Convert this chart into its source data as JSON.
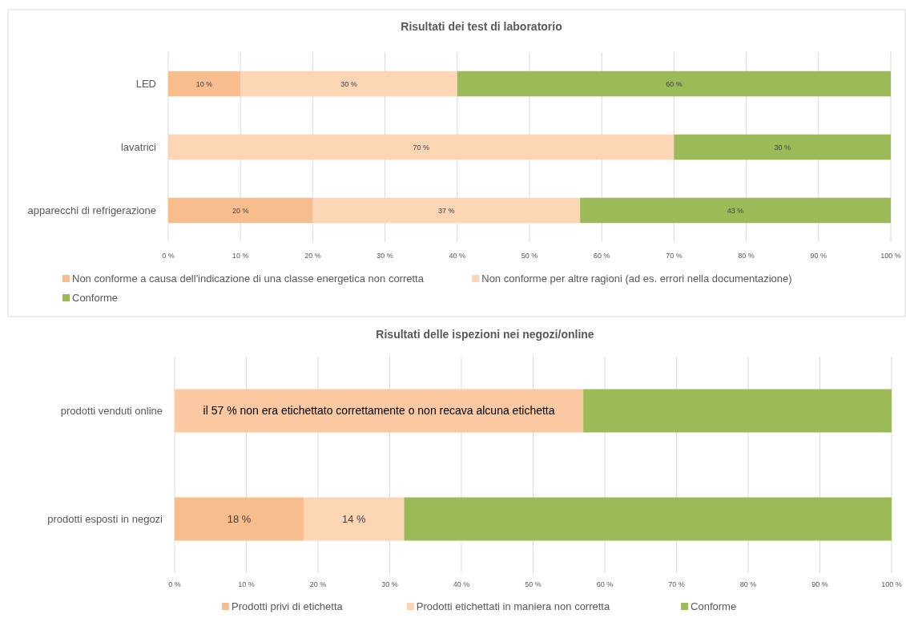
{
  "chart_data": [
    {
      "type": "bar",
      "orientation": "horizontal",
      "stacked": true,
      "title": "Risultati dei test di laboratorio",
      "categories": [
        "LED",
        "lavatrici",
        "apparecchi di refrigerazione"
      ],
      "series": [
        {
          "name": "Non conforme a causa dell'indicazione di una classe energetica non corretta",
          "color": "#f8bd8c",
          "values": [
            10,
            null,
            20
          ],
          "value_labels": [
            "10 %",
            null,
            "20 %"
          ]
        },
        {
          "name": "Non conforme per altre ragioni (ad es. errori nella documentazione)",
          "color": "#fcd5b5",
          "values": [
            30,
            70,
            37
          ],
          "value_labels": [
            "30 %",
            "70 %",
            "37 %"
          ]
        },
        {
          "name": "Conforme",
          "color": "#9bbb59",
          "values": [
            60,
            30,
            43
          ],
          "value_labels": [
            "60 %",
            "30 %",
            "43 %"
          ]
        }
      ],
      "xlim": [
        0,
        100
      ],
      "xticks": [
        {
          "value": 0,
          "label": "0 %"
        },
        {
          "value": 10,
          "label": "10 %"
        },
        {
          "value": 20,
          "label": "20 %"
        },
        {
          "value": 30,
          "label": "30 %"
        },
        {
          "value": 40,
          "label": "40 %"
        },
        {
          "value": 50,
          "label": "50 %"
        },
        {
          "value": 60,
          "label": "60 %"
        },
        {
          "value": 70,
          "label": "70 %"
        },
        {
          "value": 80,
          "label": "80 %"
        },
        {
          "value": 90,
          "label": "90 %"
        },
        {
          "value": 100,
          "label": "100 %"
        }
      ],
      "grid": "x",
      "legend": "bottom"
    },
    {
      "type": "bar",
      "orientation": "horizontal",
      "stacked": true,
      "title": "Risultati delle ispezioni nei negozi/online",
      "categories": [
        "prodotti venduti online",
        "prodotti esposti in negozi"
      ],
      "series": [
        {
          "name": "Prodotti privi di etichetta",
          "color": "#f8bd8c",
          "values": [
            null,
            18
          ],
          "value_labels": [
            null,
            "18 %"
          ]
        },
        {
          "name": "Prodotti etichettati in maniera non corretta",
          "color": "#fcd5b5",
          "values": [
            null,
            14
          ],
          "value_labels": [
            null,
            "14 %"
          ]
        },
        {
          "color": "#fac9a2",
          "values": [
            57,
            null
          ],
          "value_labels": [
            "il 57 % non era etichettato correttamente  o non recava alcuna etichetta",
            null
          ]
        },
        {
          "name": "Conforme",
          "color": "#9bbb59",
          "values": [
            43,
            68
          ]
        }
      ],
      "xlim": [
        0,
        100
      ],
      "xticks": [
        {
          "value": 0,
          "label": "0 %"
        },
        {
          "value": 10,
          "label": "10 %"
        },
        {
          "value": 20,
          "label": "20 %"
        },
        {
          "value": 30,
          "label": "30 %"
        },
        {
          "value": 40,
          "label": "40 %"
        },
        {
          "value": 50,
          "label": "50 %"
        },
        {
          "value": 60,
          "label": "60 %"
        },
        {
          "value": 70,
          "label": "70 %"
        },
        {
          "value": 80,
          "label": "80 %"
        },
        {
          "value": 90,
          "label": "90 %"
        },
        {
          "value": 100,
          "label": "100 %"
        }
      ],
      "grid": "x",
      "legend": "bottom"
    }
  ]
}
